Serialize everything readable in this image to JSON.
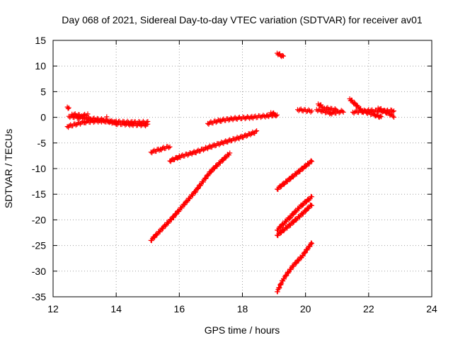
{
  "chart_data": {
    "type": "scatter",
    "title": "Day 068 of 2021, Sidereal Day-to-day VTEC variation (SDTVAR) for receiver av01",
    "xlabel": "GPS time / hours",
    "ylabel": "SDTVAR / TECUs",
    "xlim": [
      12,
      24
    ],
    "ylim": [
      -35,
      15
    ],
    "xticks": [
      12,
      14,
      16,
      18,
      20,
      22,
      24
    ],
    "yticks": [
      15,
      10,
      5,
      0,
      -5,
      -10,
      -15,
      -20,
      -25,
      -30,
      -35
    ],
    "grid": true,
    "marker": "plus",
    "color": "#ff0000",
    "segments": [
      {
        "x": [
          12.45,
          12.5
        ],
        "y": [
          2.0,
          1.8
        ]
      },
      {
        "x": [
          12.45,
          13.0,
          13.5,
          14.0,
          14.5,
          15.0
        ],
        "y": [
          -1.8,
          -0.9,
          -0.7,
          -0.9,
          -1.0,
          -1.0
        ]
      },
      {
        "x": [
          12.5,
          12.8,
          13.2,
          13.6,
          14.0,
          14.5,
          15.0
        ],
        "y": [
          0.2,
          0.0,
          -0.3,
          -0.5,
          -1.2,
          -1.4,
          -1.5
        ]
      },
      {
        "x": [
          12.6,
          12.9,
          13.1
        ],
        "y": [
          0.6,
          0.3,
          0.5
        ]
      },
      {
        "x": [
          13.7
        ],
        "y": [
          0.1
        ]
      },
      {
        "x": [
          15.1,
          15.4,
          15.7
        ],
        "y": [
          -6.8,
          -6.2,
          -5.7
        ]
      },
      {
        "x": [
          15.1,
          15.8,
          16.5,
          17.0,
          17.6
        ],
        "y": [
          -24.0,
          -19.5,
          -14.5,
          -10.5,
          -7.0
        ]
      },
      {
        "x": [
          15.7,
          16.0,
          16.5,
          17.0,
          17.5,
          18.0,
          18.45
        ],
        "y": [
          -8.5,
          -7.7,
          -6.8,
          -5.7,
          -4.7,
          -3.8,
          -2.8
        ]
      },
      {
        "x": [
          16.9,
          17.3,
          17.8,
          18.3,
          18.8,
          19.1
        ],
        "y": [
          -1.2,
          -0.6,
          -0.2,
          0.0,
          0.3,
          0.5
        ]
      },
      {
        "x": [
          18.9,
          19.05
        ],
        "y": [
          0.9,
          0.5
        ]
      },
      {
        "x": [
          19.1,
          19.3
        ],
        "y": [
          12.5,
          11.8
        ]
      },
      {
        "x": [
          19.1,
          19.4,
          19.8,
          20.2
        ],
        "y": [
          -14.0,
          -12.5,
          -10.5,
          -8.5
        ]
      },
      {
        "x": [
          19.1,
          19.5,
          19.9,
          20.2
        ],
        "y": [
          -22.0,
          -19.5,
          -17.0,
          -15.5
        ]
      },
      {
        "x": [
          19.1,
          19.5,
          19.9,
          20.2
        ],
        "y": [
          -23.0,
          -21.0,
          -18.8,
          -17.0
        ]
      },
      {
        "x": [
          19.1,
          19.3,
          19.6,
          19.9,
          20.2
        ],
        "y": [
          -34.0,
          -31.5,
          -29.0,
          -27.0,
          -24.5
        ]
      },
      {
        "x": [
          19.75,
          20.2
        ],
        "y": [
          1.5,
          1.2
        ]
      },
      {
        "x": [
          20.35,
          20.8,
          21.2
        ],
        "y": [
          1.5,
          0.8,
          1.2
        ]
      },
      {
        "x": [
          20.4,
          20.55
        ],
        "y": [
          2.6,
          2.0
        ]
      },
      {
        "x": [
          20.6,
          21.0
        ],
        "y": [
          1.8,
          1.4
        ]
      },
      {
        "x": [
          21.4,
          21.8,
          22.2,
          22.4
        ],
        "y": [
          3.6,
          1.2,
          0.5,
          0.0
        ]
      },
      {
        "x": [
          21.5,
          22.0,
          22.5,
          22.8
        ],
        "y": [
          1.0,
          1.3,
          1.2,
          1.3
        ]
      },
      {
        "x": [
          22.3,
          22.8
        ],
        "y": [
          1.8,
          0.2
        ]
      }
    ]
  }
}
